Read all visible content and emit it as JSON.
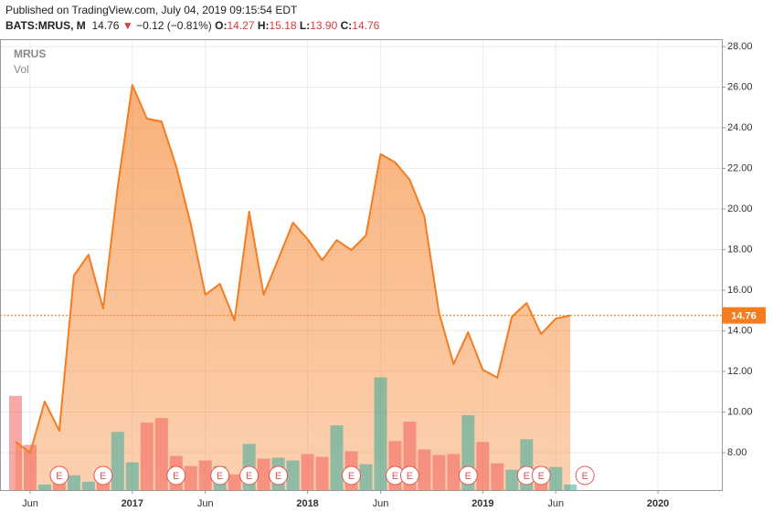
{
  "header": {
    "published": "Published on TradingView.com, July 04, 2019 09:15:54 EDT",
    "symbol": "BATS:MRUS, M",
    "price": "14.76",
    "arrow": "▼",
    "change": "−0.12 (−0.81%)",
    "o_label": "O:",
    "o": "14.27",
    "h_label": "H:",
    "h": "15.18",
    "l_label": "L:",
    "l": "13.90",
    "c_label": "C:",
    "c": "14.76"
  },
  "chart_data": {
    "type": "area",
    "x": [
      "2016-05",
      "2016-06",
      "2016-07",
      "2016-08",
      "2016-09",
      "2016-10",
      "2016-11",
      "2016-12",
      "2017-01",
      "2017-02",
      "2017-03",
      "2017-04",
      "2017-05",
      "2017-06",
      "2017-07",
      "2017-08",
      "2017-09",
      "2017-10",
      "2017-11",
      "2017-12",
      "2018-01",
      "2018-02",
      "2018-03",
      "2018-04",
      "2018-05",
      "2018-06",
      "2018-07",
      "2018-08",
      "2018-09",
      "2018-10",
      "2018-11",
      "2018-12",
      "2019-01",
      "2019-02",
      "2019-03",
      "2019-04",
      "2019-05",
      "2019-06",
      "2019-07"
    ],
    "series": [
      {
        "name": "MRUS",
        "color": "#f57c1f",
        "values": [
          8.54,
          8.0,
          10.52,
          9.08,
          16.72,
          17.75,
          15.1,
          21.08,
          26.11,
          24.45,
          24.31,
          22.1,
          19.28,
          15.78,
          16.31,
          14.52,
          19.87,
          15.78,
          17.53,
          19.33,
          18.52,
          17.48,
          18.47,
          17.98,
          18.7,
          22.7,
          22.3,
          21.44,
          19.64,
          14.92,
          12.36,
          13.93,
          12.09,
          11.69,
          14.7,
          15.37,
          13.84,
          14.6,
          14.76
        ]
      }
    ],
    "volume": {
      "name": "Vol",
      "up_color": "#26a69a",
      "down_color": "#ef5350",
      "values": [
        102,
        49,
        6,
        12,
        16,
        9,
        15,
        63,
        30,
        73,
        78,
        37,
        26,
        32,
        26,
        17,
        50,
        34,
        35,
        32,
        39,
        36,
        70,
        42,
        28,
        122,
        53,
        74,
        44,
        38,
        39,
        81,
        52,
        29,
        22,
        55,
        25,
        25,
        6
      ]
    },
    "earnings": [
      {
        "x": "2016-08",
        "label": "E"
      },
      {
        "x": "2016-11",
        "label": "E"
      },
      {
        "x": "2017-04",
        "label": "E"
      },
      {
        "x": "2017-07",
        "label": "E"
      },
      {
        "x": "2017-09",
        "label": "E"
      },
      {
        "x": "2017-11",
        "label": "E"
      },
      {
        "x": "2018-04",
        "label": "E"
      },
      {
        "x": "2018-07",
        "label": "E"
      },
      {
        "x": "2018-08",
        "label": "E"
      },
      {
        "x": "2018-12",
        "label": "E"
      },
      {
        "x": "2019-04",
        "label": "E"
      },
      {
        "x": "2019-05",
        "label": "E"
      },
      {
        "x": "2019-08",
        "label": "E"
      }
    ],
    "xlim": [
      "2016-04",
      "2020-05"
    ],
    "xticks": [
      {
        "value": "2016-06",
        "label": "Jun"
      },
      {
        "value": "2017-01",
        "label": "2017"
      },
      {
        "value": "2017-06",
        "label": "Jun"
      },
      {
        "value": "2018-01",
        "label": "2018"
      },
      {
        "value": "2018-06",
        "label": "Jun"
      },
      {
        "value": "2019-01",
        "label": "2019"
      },
      {
        "value": "2019-06",
        "label": "Jun"
      },
      {
        "value": "2020-01",
        "label": "2020"
      }
    ],
    "ylim": [
      6.16,
      28.36
    ],
    "yticks": [
      {
        "value": 8,
        "label": "8.00"
      },
      {
        "value": 10,
        "label": "10.00"
      },
      {
        "value": 12,
        "label": "12.00"
      },
      {
        "value": 14,
        "label": "14.00"
      },
      {
        "value": 16,
        "label": "16.00"
      },
      {
        "value": 18,
        "label": "18.00"
      },
      {
        "value": 20,
        "label": "20.00"
      },
      {
        "value": 22,
        "label": "22.00"
      },
      {
        "value": 24,
        "label": "24.00"
      },
      {
        "value": 26,
        "label": "26.00"
      },
      {
        "value": 28,
        "label": "28.00"
      }
    ],
    "grid": true
  }
}
